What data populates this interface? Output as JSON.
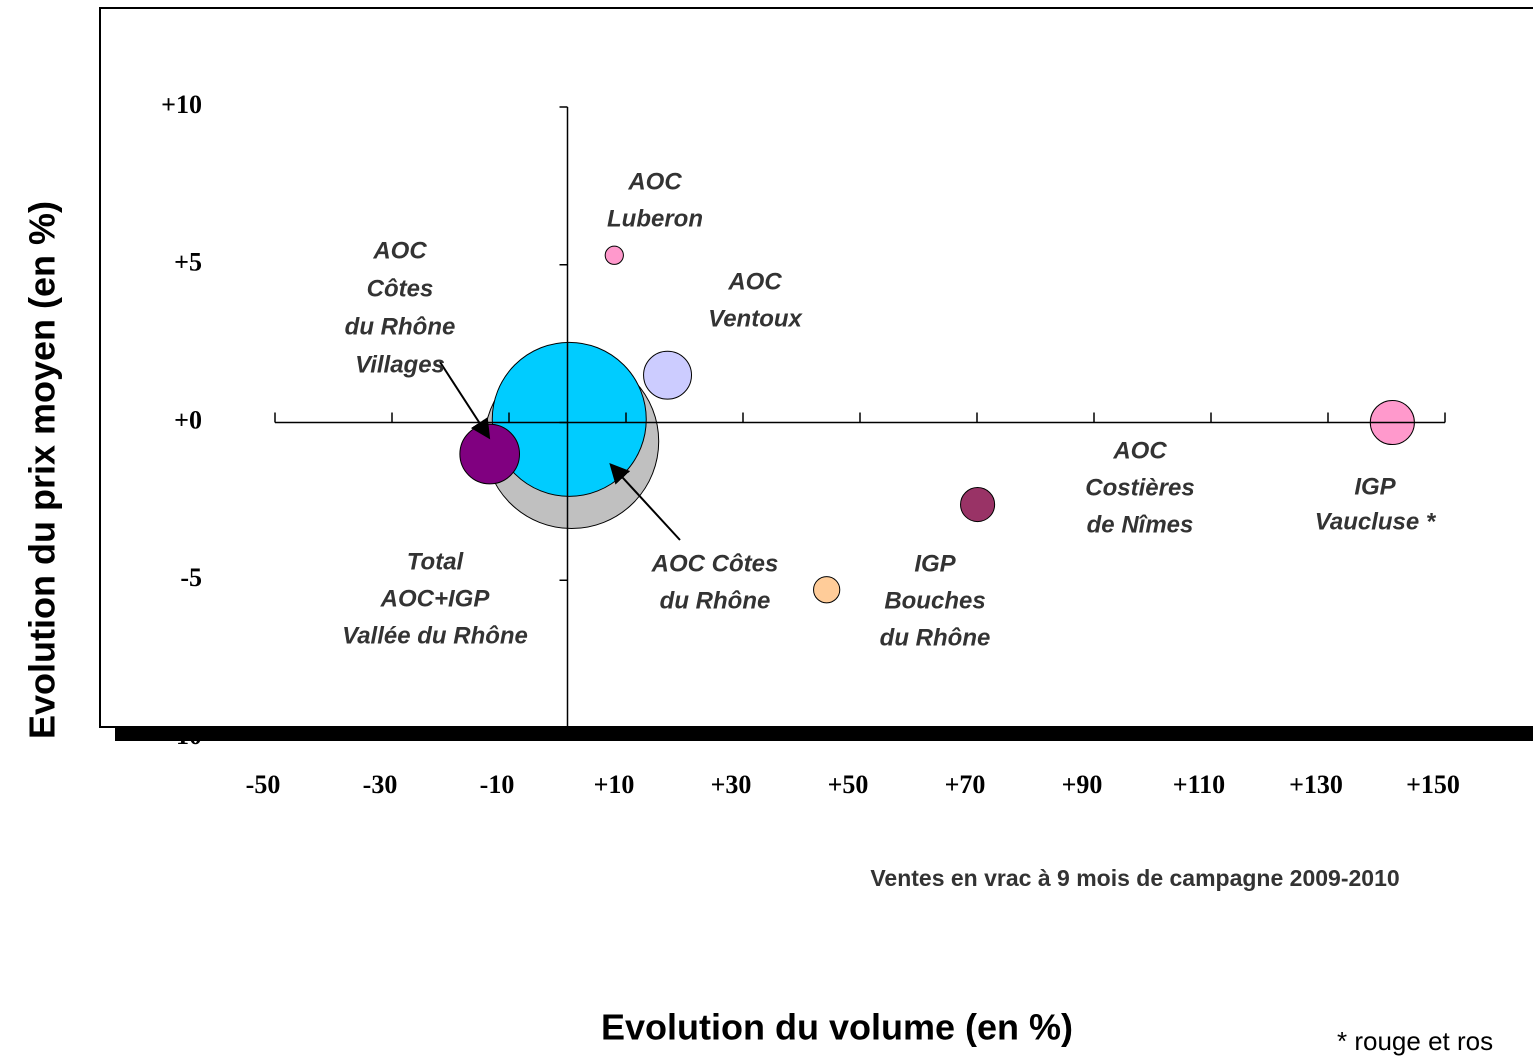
{
  "chart_data": {
    "type": "bubble",
    "x_label": "Evolution du volume (en %)",
    "y_label": "Evolution du prix moyen (en %)",
    "subtitle": "Ventes en vrac à 9 mois de campagne 2009-2010",
    "footnote": "* rouge et ros",
    "xlim": [
      -50,
      150
    ],
    "ylim": [
      -10,
      10
    ],
    "xticks": [
      -50,
      -30,
      -10,
      {
        "value": 10,
        "label": "+10"
      },
      {
        "value": 30,
        "label": "+30"
      },
      {
        "value": 50,
        "label": "+50"
      },
      {
        "value": 70,
        "label": "+70"
      },
      {
        "value": 90,
        "label": "+90"
      },
      {
        "value": 110,
        "label": "+110"
      },
      {
        "value": 130,
        "label": "+130"
      },
      {
        "value": 150,
        "label": "+150"
      }
    ],
    "yticks": [
      {
        "value": 10,
        "label": "+10"
      },
      {
        "value": 5,
        "label": "+5"
      },
      {
        "value": 0,
        "label": "+0"
      },
      -5,
      -10
    ],
    "series": [
      {
        "label": [
          "Total",
          "AOC+IGP",
          "Vallée du Rhône"
        ],
        "color": "#c0c0c0",
        "x": [
          0.7
        ],
        "values": [
          -0.6
        ],
        "sizes": [
          128
        ]
      },
      {
        "label": [
          "AOC Côtes",
          "du Rhône"
        ],
        "color": "#00ccff",
        "x": [
          0.3
        ],
        "values": [
          0.1
        ],
        "sizes": [
          100
        ]
      },
      {
        "label": [
          "AOC",
          "Côtes",
          "du Rhône",
          "Villages"
        ],
        "color": "#800080",
        "x": [
          -13.3
        ],
        "values": [
          -1.0
        ],
        "sizes": [
          15
        ]
      },
      {
        "label": [
          "AOC",
          "Luberon"
        ],
        "color": "#ff99cc",
        "x": [
          8.0
        ],
        "values": [
          5.3
        ],
        "sizes": [
          1.4
        ]
      },
      {
        "label": [
          "AOC",
          "Ventoux"
        ],
        "color": "#ccccff",
        "x": [
          17.1
        ],
        "values": [
          1.5
        ],
        "sizes": [
          9.7
        ]
      },
      {
        "label": [
          "IGP",
          "Bouches",
          "du Rhône"
        ],
        "color": "#ffcc99",
        "x": [
          44.3
        ],
        "values": [
          -5.3
        ],
        "sizes": [
          2.9
        ]
      },
      {
        "label": [
          "AOC",
          "Costières",
          "de Nîmes"
        ],
        "color": "#993366",
        "x": [
          70.1
        ],
        "values": [
          -2.6
        ],
        "sizes": [
          4.9
        ]
      },
      {
        "label": [
          "IGP",
          "Vaucluse *"
        ],
        "color": "#ff99cc",
        "x": [
          141
        ],
        "values": [
          0.0
        ],
        "sizes": [
          8.2
        ]
      }
    ]
  }
}
